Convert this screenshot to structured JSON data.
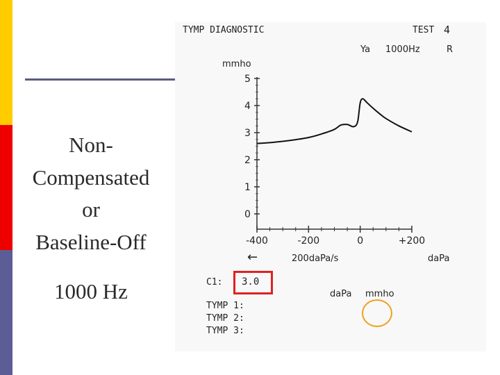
{
  "slide": {
    "title": "Non-\nCompensated\nor\nBaseline-Off",
    "subtitle": "1000 Hz",
    "bar_colors": [
      "#ffcc00",
      "#ee0000",
      "#5c5c96"
    ],
    "divider_color": "#5a5a84"
  },
  "printout": {
    "header_left": "TYMP DIAGNOSTIC",
    "header_test": "TEST",
    "test_number": "4",
    "probe_label": "Ya",
    "frequency": "1000Hz",
    "ear": "R",
    "c1_label": "C1:",
    "c1_value": "3.0",
    "c1_box_color": "#dd2222",
    "table_col1": "daPa",
    "table_col2": "mmho",
    "circle_color": "#f0a020",
    "tymp_rows": [
      "TYMP 1:",
      "TYMP 2:",
      "TYMP 3:"
    ]
  },
  "chart_data": {
    "type": "line",
    "title": "",
    "xlabel": "daPa",
    "ylabel": "mmho",
    "xlim": [
      -400,
      200
    ],
    "ylim": [
      0,
      5
    ],
    "x_ticks": [
      -400,
      -200,
      0,
      200
    ],
    "x_tick_labels": [
      "-400",
      "-200",
      "0",
      "+200"
    ],
    "y_ticks": [
      0,
      1,
      2,
      3,
      4,
      5
    ],
    "y_tick_labels": [
      "0",
      "1",
      "2",
      "3",
      "4",
      "5"
    ],
    "sweep_label": "200daPa/s",
    "sweep_arrow": "←",
    "grid": false,
    "series": [
      {
        "x": [
          -400,
          -350,
          -300,
          -250,
          -200,
          -150,
          -100,
          -75,
          -50,
          -25,
          -10,
          0,
          10,
          25,
          50,
          75,
          100,
          150,
          200
        ],
        "y": [
          2.6,
          2.63,
          2.68,
          2.74,
          2.82,
          2.95,
          3.12,
          3.28,
          3.3,
          3.22,
          3.4,
          4.1,
          4.25,
          4.12,
          3.9,
          3.7,
          3.52,
          3.25,
          3.03
        ]
      }
    ]
  }
}
